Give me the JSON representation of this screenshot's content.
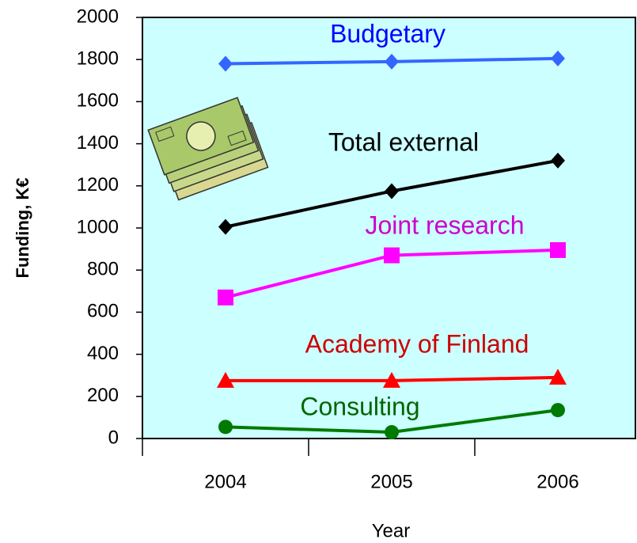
{
  "chart_data": {
    "type": "line",
    "x_label": "Year",
    "y_label": "Funding, K€",
    "categories": [
      "2004",
      "2005",
      "2006"
    ],
    "ylim": [
      0,
      2000
    ],
    "yticks": [
      0,
      200,
      400,
      600,
      800,
      1000,
      1200,
      1400,
      1600,
      1800,
      2000
    ],
    "background": "#ccffff",
    "series": [
      {
        "name": "Budgetary",
        "color": "#3366ff",
        "label_color": "#0000ff",
        "marker": "diamond",
        "values": [
          1780,
          1790,
          1805
        ]
      },
      {
        "name": "Total external",
        "color": "#000000",
        "label_color": "#000000",
        "marker": "diamond",
        "values": [
          1005,
          1175,
          1320
        ]
      },
      {
        "name": "Joint research",
        "color": "#ff00ff",
        "label_color": "#cc00cc",
        "marker": "square",
        "values": [
          670,
          870,
          895
        ]
      },
      {
        "name": "Academy of Finland",
        "color": "#ff0000",
        "label_color": "#cc0000",
        "marker": "triangle",
        "values": [
          275,
          275,
          290
        ]
      },
      {
        "name": "Consulting",
        "color": "#007a00",
        "label_color": "#006600",
        "marker": "circle",
        "values": [
          55,
          30,
          135
        ]
      }
    ]
  }
}
